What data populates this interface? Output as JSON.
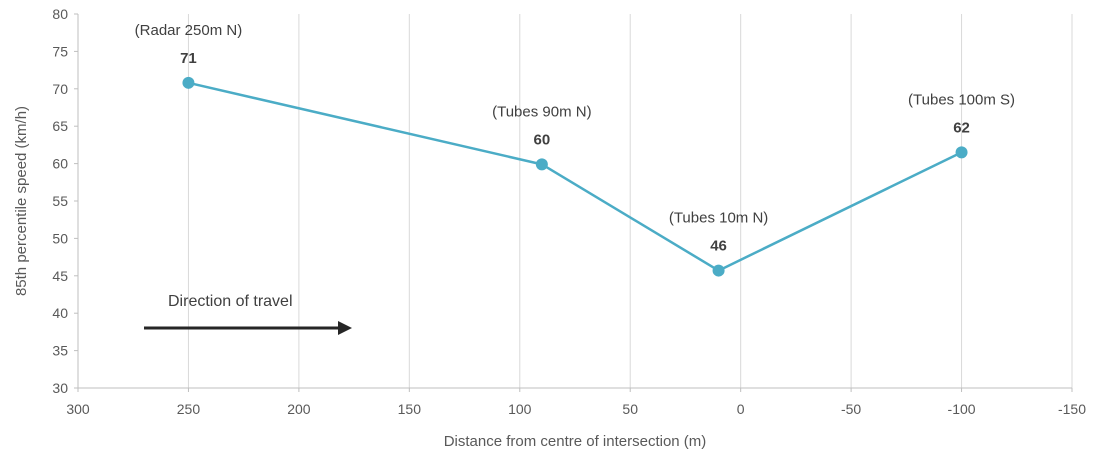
{
  "chart_data": {
    "type": "line",
    "title": "",
    "xlabel": "Distance from centre of intersection (m)",
    "ylabel": "85th percentile speed (km/h)",
    "xlim": [
      300,
      -150
    ],
    "ylim": [
      30,
      80
    ],
    "x_reversed": true,
    "x_ticks": [
      300,
      250,
      200,
      150,
      100,
      50,
      0,
      -50,
      -100,
      -150
    ],
    "y_ticks": [
      30,
      35,
      40,
      45,
      50,
      55,
      60,
      65,
      70,
      75,
      80
    ],
    "x_tick_labels": [
      "300",
      "250",
      "200",
      "150",
      "100",
      "50",
      "0",
      "-50",
      "-100",
      "-150"
    ],
    "y_tick_labels": [
      "30",
      "35",
      "40",
      "45",
      "50",
      "55",
      "60",
      "65",
      "70",
      "75",
      "80"
    ],
    "grid": "vertical",
    "color": "#4BACC6",
    "series": [
      {
        "x": [
          250,
          90,
          10,
          -100
        ],
        "y": [
          70.8,
          59.9,
          45.7,
          61.5
        ],
        "point_labels": [
          "(Radar 250m N)",
          "(Tubes 90m N)",
          "(Tubes 10m N)",
          "(Tubes 100m S)"
        ],
        "value_labels": [
          "71",
          "60",
          "46",
          "62"
        ]
      }
    ],
    "annotation": {
      "text": "Direction of travel",
      "arrow_direction": "right"
    }
  }
}
